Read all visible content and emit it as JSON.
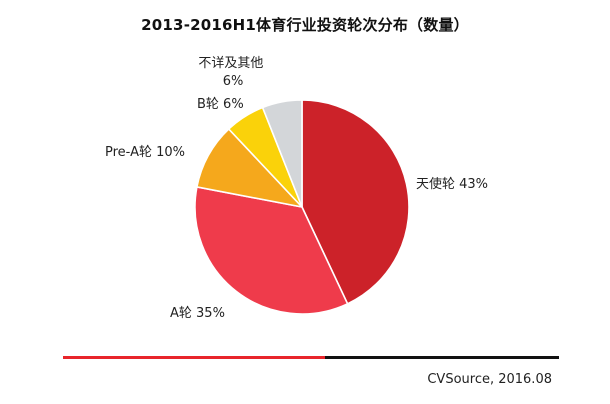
{
  "chart_data": {
    "type": "pie",
    "title": "2013-2016H1体育行业投资轮次分布（数量）",
    "slices": [
      {
        "name": "天使轮",
        "value": 43,
        "label": "天使轮 43%",
        "color": "#cc2229"
      },
      {
        "name": "A轮",
        "value": 35,
        "label": "A轮 35%",
        "color": "#ef3b4b"
      },
      {
        "name": "Pre-A轮",
        "value": 10,
        "label": "Pre-A轮 10%",
        "color": "#f5a81c"
      },
      {
        "name": "B轮",
        "value": 6,
        "label": "B轮 6%",
        "color": "#fad20a"
      },
      {
        "name": "不详及其他",
        "value": 6,
        "label_lines": [
          "不详及其他",
          "6%"
        ],
        "color": "#d3d6d9"
      }
    ],
    "start": "12 o'clock",
    "direction": "clockwise"
  },
  "footer": {
    "source": "CVSource, 2016.08",
    "rule_colors": [
      "#e8252b",
      "#111111"
    ]
  }
}
